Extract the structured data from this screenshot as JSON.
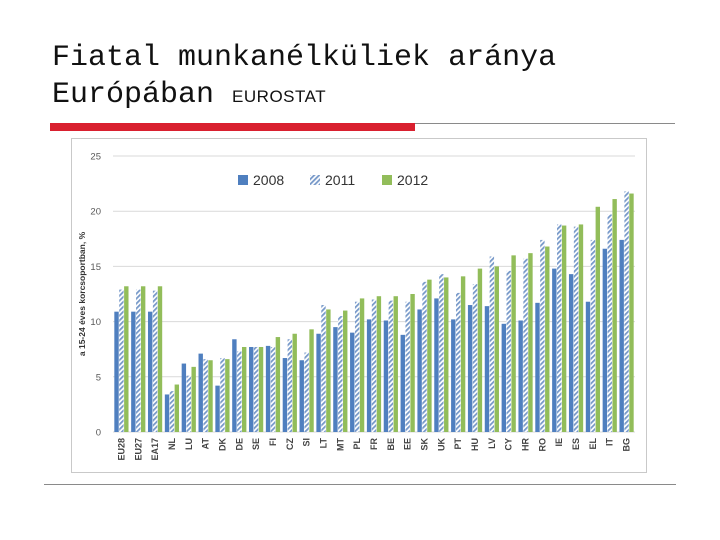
{
  "slide": {
    "title_line1": "Fiatal munkanélküliek aránya",
    "title_line2": "Európában",
    "source": "EUROSTAT"
  },
  "colors": {
    "accent_bar": "#d9202f",
    "series_2008": "#4f7fbf",
    "series_2011": "#7799c9",
    "series_2012": "#92bd5a",
    "grid": "#d9d9d9"
  },
  "chart_data": {
    "type": "bar",
    "ylabel": "a 15-24 éves korcsoportban, %",
    "ylim": [
      0,
      25
    ],
    "yticks": [
      0,
      5,
      10,
      15,
      20,
      25
    ],
    "grid": true,
    "legend_position": "top",
    "categories": [
      "EU28",
      "EU27",
      "EA17",
      "NL",
      "LU",
      "AT",
      "DK",
      "DE",
      "SE",
      "FI",
      "CZ",
      "SI",
      "LT",
      "MT",
      "PL",
      "FR",
      "BE",
      "EE",
      "SK",
      "UK",
      "PT",
      "HU",
      "LV",
      "CY",
      "HR",
      "RO",
      "IE",
      "ES",
      "EL",
      "IT",
      "BG"
    ],
    "series": [
      {
        "name": "2008",
        "pattern": "solid",
        "values": [
          10.9,
          10.9,
          10.9,
          3.4,
          6.2,
          7.1,
          4.2,
          8.4,
          7.7,
          7.8,
          6.7,
          6.5,
          8.9,
          9.5,
          9.0,
          10.2,
          10.1,
          8.8,
          11.1,
          12.1,
          10.2,
          11.5,
          11.4,
          9.8,
          10.1,
          11.7,
          14.8,
          14.3,
          11.8,
          16.6,
          17.4
        ]
      },
      {
        "name": "2011",
        "pattern": "hatched",
        "values": [
          12.9,
          12.9,
          12.8,
          3.7,
          5.1,
          6.6,
          6.7,
          7.3,
          7.7,
          7.7,
          8.4,
          7.2,
          11.5,
          10.5,
          11.8,
          12.0,
          11.9,
          11.8,
          13.6,
          14.3,
          12.6,
          13.4,
          15.9,
          14.6,
          15.7,
          17.4,
          18.8,
          18.6,
          17.4,
          19.7,
          21.8
        ]
      },
      {
        "name": "2012",
        "pattern": "solid",
        "values": [
          13.2,
          13.2,
          13.2,
          4.3,
          5.9,
          6.5,
          6.6,
          7.7,
          7.7,
          8.6,
          8.9,
          9.3,
          11.1,
          11.0,
          12.1,
          12.3,
          12.3,
          12.5,
          13.8,
          14.0,
          14.1,
          14.8,
          15.0,
          16.0,
          16.2,
          16.8,
          18.7,
          18.8,
          20.4,
          21.1,
          21.6
        ]
      }
    ]
  }
}
